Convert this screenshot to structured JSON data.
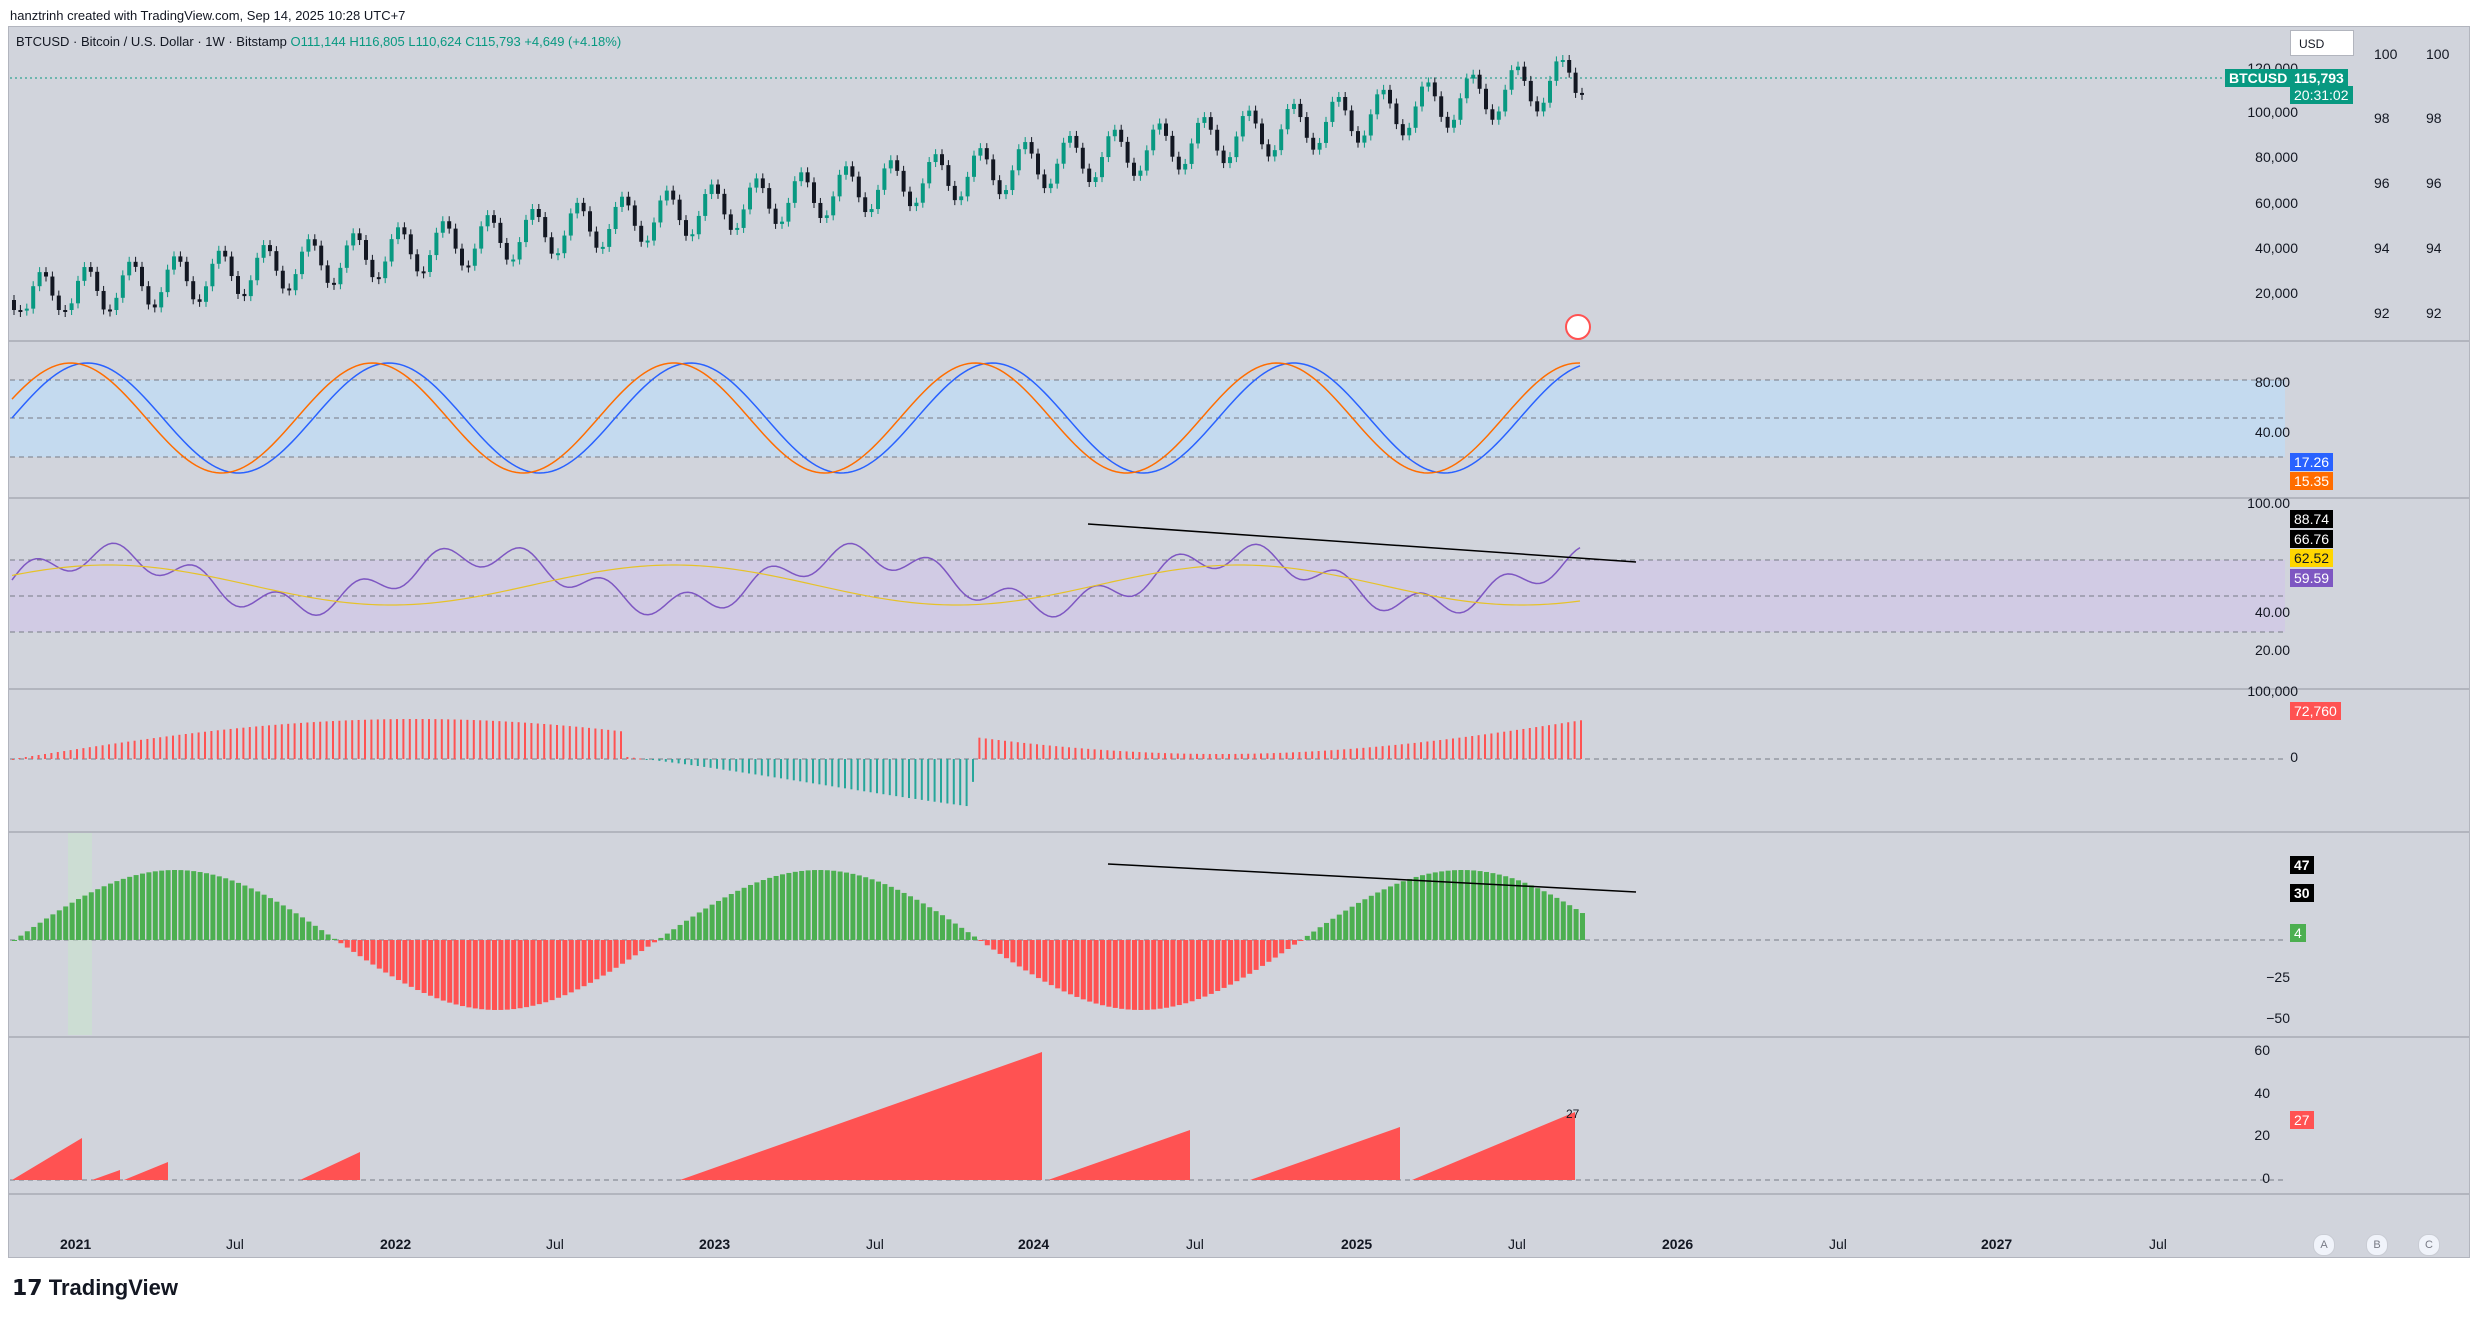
{
  "header": {
    "created_by": "hanztrinh created with TradingView.com, Sep 14, 2025 10:28 UTC+7"
  },
  "symbol": {
    "description": "BTCUSD · Bitcoin / U.S. Dollar · 1W · Bitstamp",
    "open": "O111,144",
    "high": "H116,805",
    "low": "L110,624",
    "close": "C115,793",
    "change": "+4,649 (+4.18%)"
  },
  "price_axis": {
    "currency": "USD",
    "ticks": [
      "120,000",
      "100,000",
      "80,000",
      "60,000",
      "40,000",
      "20,000"
    ],
    "symbol_badge": "BTCUSD",
    "price_badge": "115,793",
    "countdown_badge": "20:31:02",
    "secondary_ticks_a": [
      "100",
      "98",
      "96",
      "94",
      "92"
    ],
    "secondary_ticks_b": [
      "100",
      "98",
      "96",
      "94",
      "92"
    ]
  },
  "stoch_pane": {
    "ticks": [
      "80.00",
      "40.00"
    ],
    "k_value": "17.26",
    "d_value": "15.35",
    "k_color": "#2962ff",
    "d_color": "#ff6d00"
  },
  "rsi_pane": {
    "ticks": [
      "100.00",
      "40.00",
      "20.00"
    ],
    "badge_1": "88.74",
    "badge_2": "66.76",
    "badge_3": "62.52",
    "badge_4": "59.59"
  },
  "hist_pane": {
    "ticks": [
      "100,000",
      "0"
    ],
    "value": "72,760"
  },
  "momentum_pane": {
    "ticks": [
      "−25",
      "−50"
    ],
    "badge_1": "47",
    "badge_2": "30",
    "badge_3": "4"
  },
  "counter_pane": {
    "ticks": [
      "60",
      "40",
      "20",
      "0"
    ],
    "label": "27",
    "badge": "27"
  },
  "time_axis": [
    {
      "label": "2021",
      "year": true
    },
    {
      "label": "Jul",
      "year": false
    },
    {
      "label": "2022",
      "year": true
    },
    {
      "label": "Jul",
      "year": false
    },
    {
      "label": "2023",
      "year": true
    },
    {
      "label": "Jul",
      "year": false
    },
    {
      "label": "2024",
      "year": true
    },
    {
      "label": "Jul",
      "year": false
    },
    {
      "label": "2025",
      "year": true
    },
    {
      "label": "Jul",
      "year": false
    },
    {
      "label": "2026",
      "year": true
    },
    {
      "label": "Jul",
      "year": false
    },
    {
      "label": "2027",
      "year": true
    },
    {
      "label": "Jul",
      "year": false
    }
  ],
  "corner_buttons": [
    "A",
    "B",
    "C"
  ],
  "footer": {
    "brand": "TradingView"
  },
  "colors": {
    "up": "#089981",
    "down": "#131722",
    "red": "#ff5252",
    "green": "#4caf50"
  }
}
